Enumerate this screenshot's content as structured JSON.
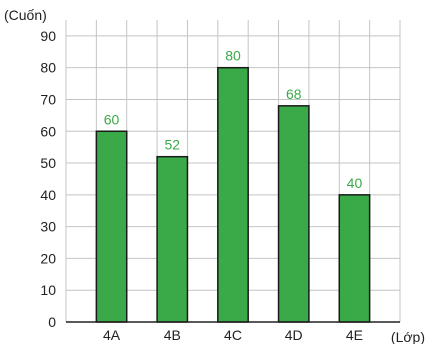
{
  "chart_data": {
    "type": "bar",
    "categories": [
      "4A",
      "4B",
      "4C",
      "4D",
      "4E"
    ],
    "values": [
      60,
      52,
      80,
      68,
      40
    ],
    "data_labels": [
      "60",
      "52",
      "80",
      "68",
      "40"
    ],
    "ylabel": "(Cuốn)",
    "xlabel": "(Lớp)",
    "ylim": [
      0,
      95
    ],
    "yticks": [
      0,
      10,
      20,
      30,
      40,
      50,
      60,
      70,
      80,
      90
    ],
    "grid": true,
    "legend": "none",
    "colors": {
      "bar_fill": "#3aaa48",
      "bar_stroke": "#1a1a1a",
      "label": "#3aaa48",
      "grid": "#c4c4c4"
    }
  }
}
